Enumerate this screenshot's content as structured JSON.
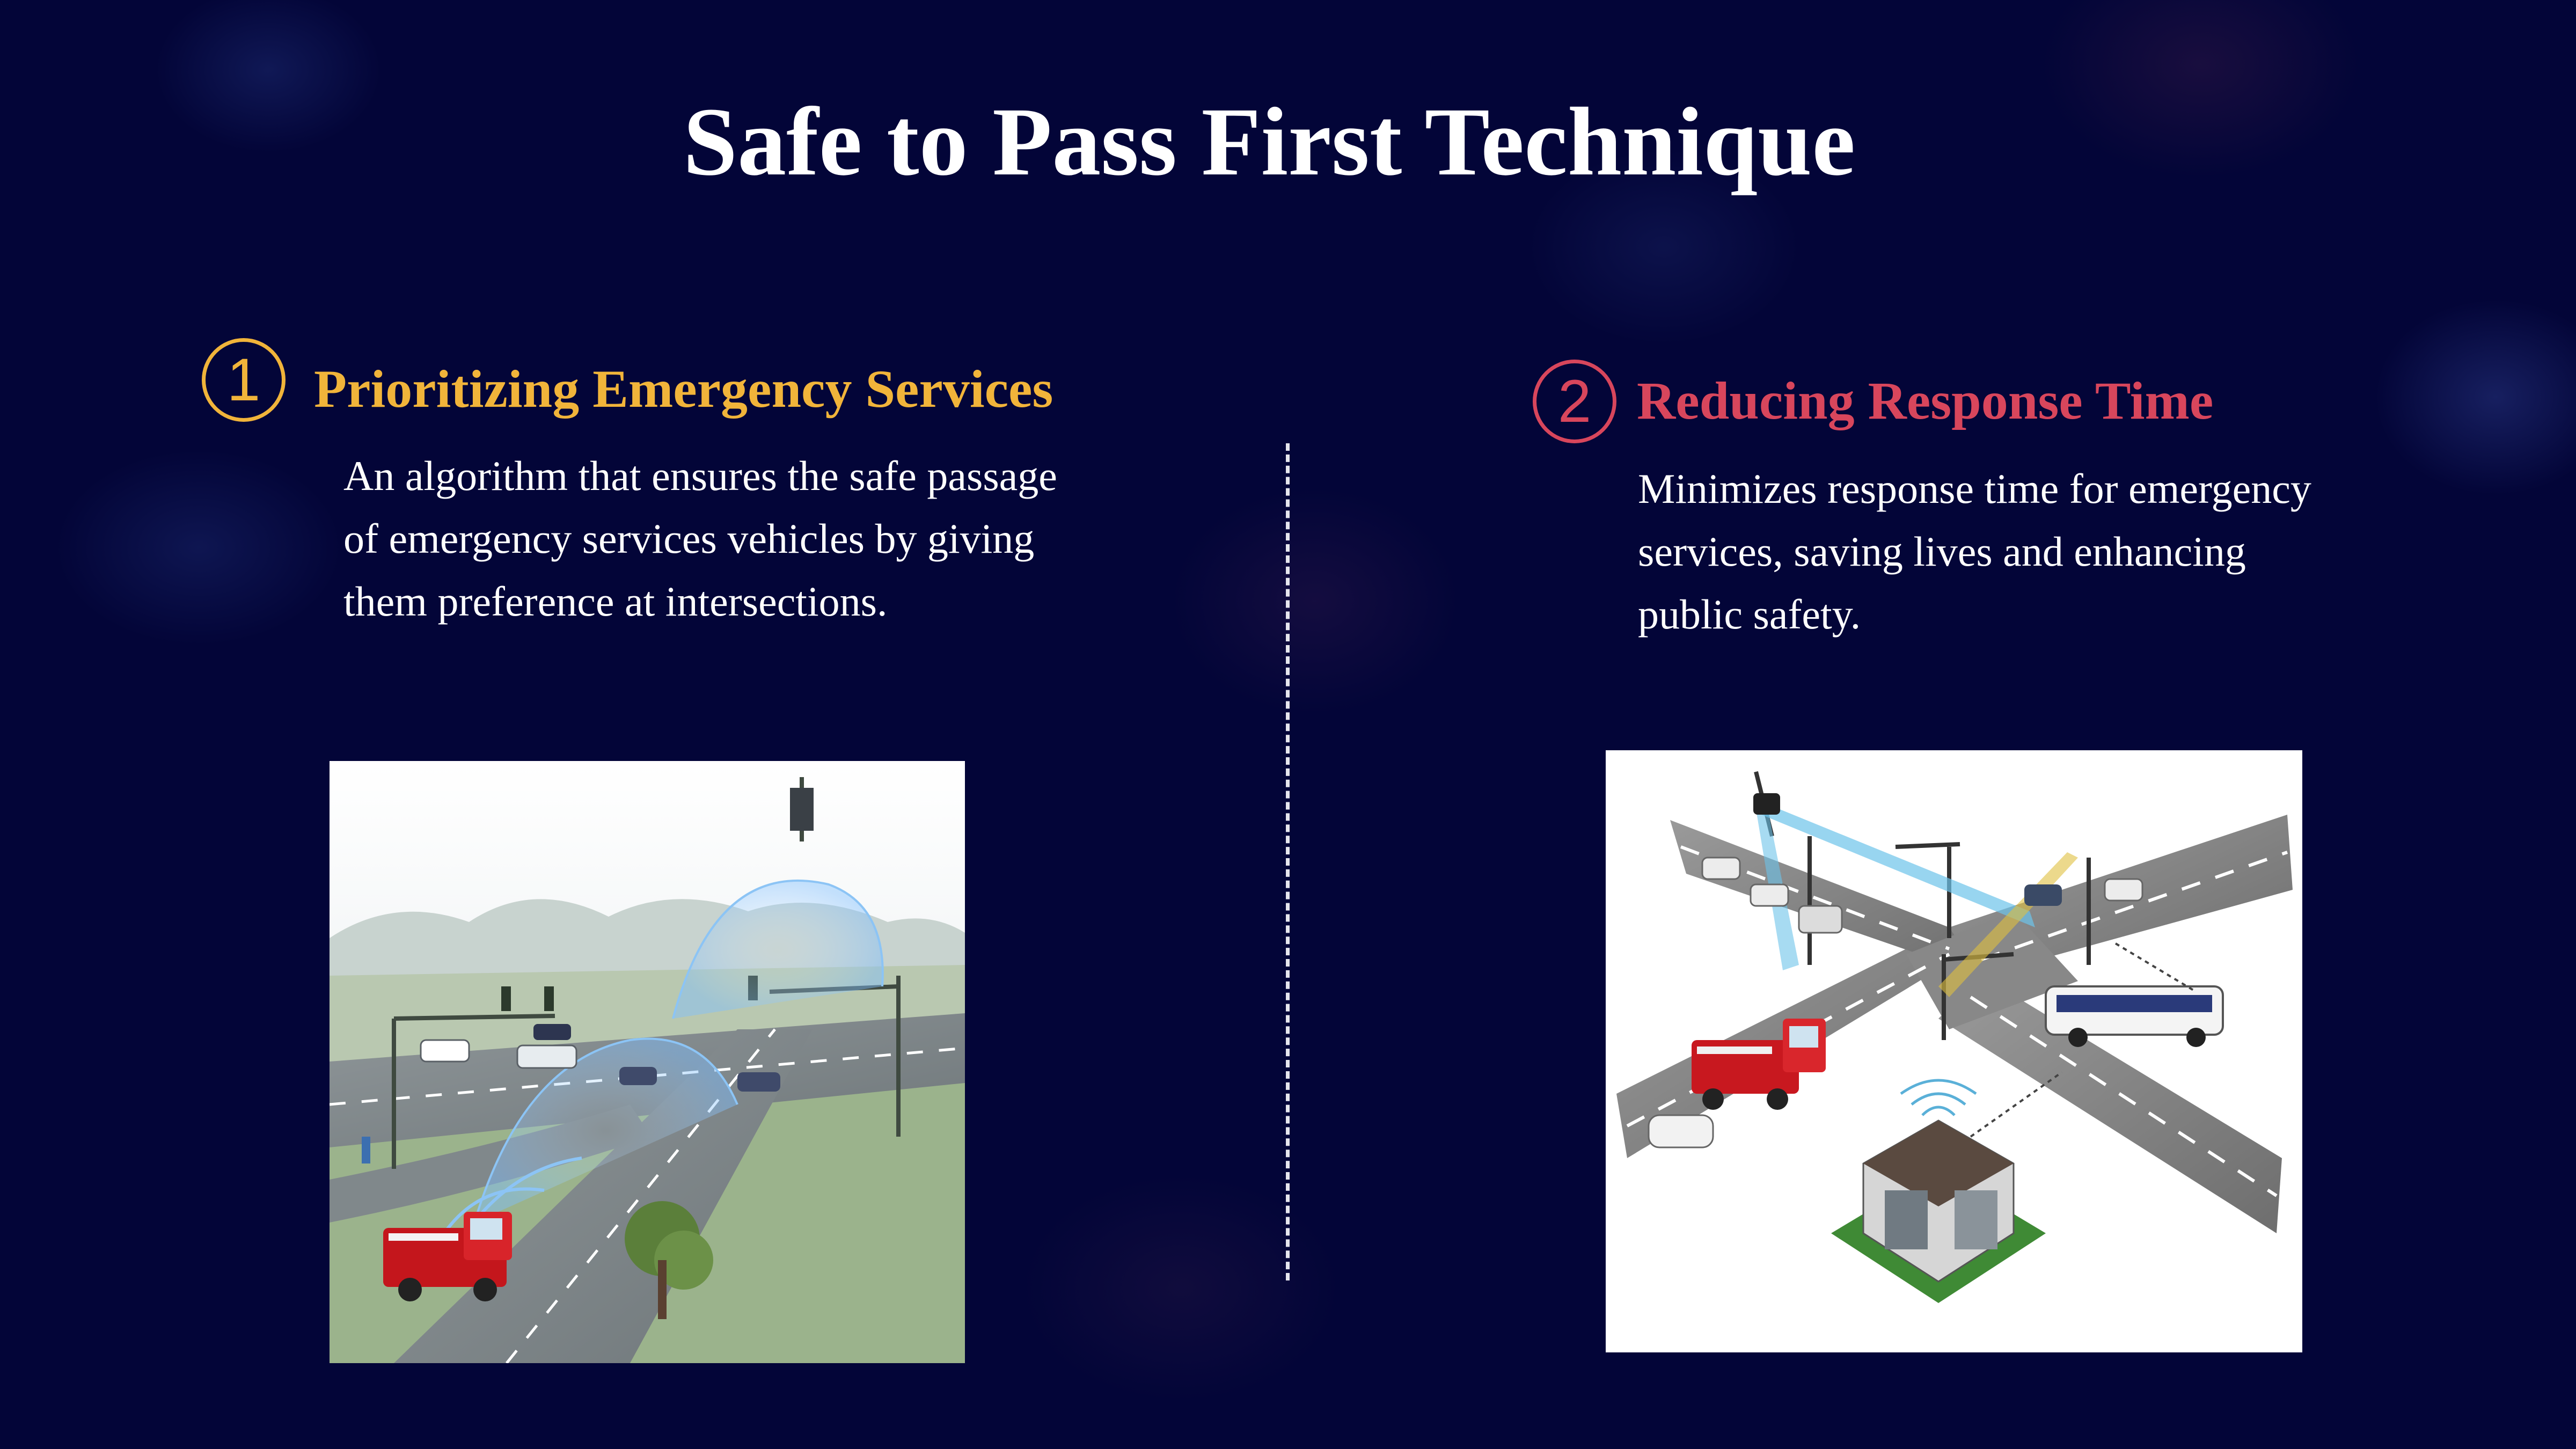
{
  "slide": {
    "title": "Safe to Pass First Technique",
    "accent_colors": {
      "background": "#030538",
      "item1": "#f1b43a",
      "item2": "#d8465c"
    }
  },
  "items": [
    {
      "number": "1",
      "heading": "Prioritizing Emergency Services",
      "description": "An algorithm that ensures the safe passage of emergency services vehicles by giving them preference at intersections.",
      "image": "fire-truck-road-sensor-icon"
    },
    {
      "number": "2",
      "heading": "Reducing Response Time",
      "description": "Minimizes response time for emergency services, saving lives and enhancing public safety.",
      "image": "smart-intersection-icon"
    }
  ]
}
